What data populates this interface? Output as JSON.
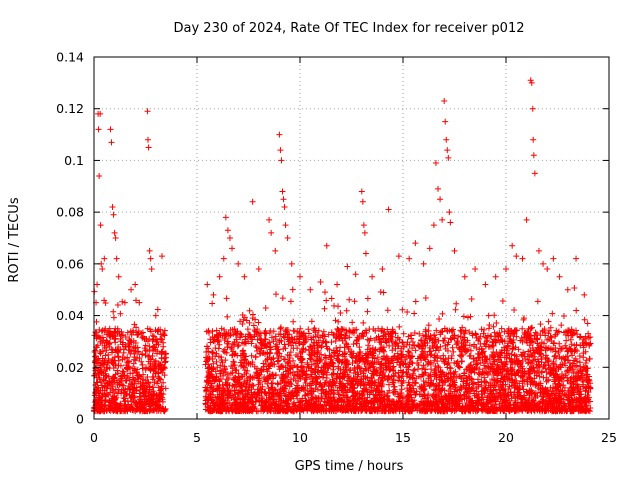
{
  "chart_data": {
    "type": "scatter",
    "title": "Day 230 of 2024, Rate Of TEC Index for receiver p012",
    "xlabel": "GPS time / hours",
    "ylabel": "ROTI / TECUs",
    "xlim": [
      0,
      25
    ],
    "ylim": [
      0,
      0.14
    ],
    "x_ticks": [
      "0",
      "5",
      "10",
      "15",
      "20",
      "25"
    ],
    "y_ticks": [
      "0",
      "0.02",
      "0.04",
      "0.06",
      "0.08",
      "0.1",
      "0.12",
      "0.14"
    ],
    "grid": true,
    "marker": "plus",
    "color": "#ff0000",
    "series": [
      {
        "points": [
          [
            0.1,
            0.045
          ],
          [
            0.15,
            0.052
          ],
          [
            0.2,
            0.118
          ],
          [
            0.22,
            0.112
          ],
          [
            0.25,
            0.094
          ],
          [
            0.3,
            0.118
          ],
          [
            0.32,
            0.075
          ],
          [
            0.35,
            0.06
          ],
          [
            0.4,
            0.058
          ],
          [
            0.5,
            0.062
          ],
          [
            0.8,
            0.112
          ],
          [
            0.85,
            0.107
          ],
          [
            0.9,
            0.082
          ],
          [
            0.95,
            0.079
          ],
          [
            1.0,
            0.072
          ],
          [
            1.05,
            0.07
          ],
          [
            1.1,
            0.062
          ],
          [
            1.2,
            0.055
          ],
          [
            1.5,
            0.045
          ],
          [
            1.8,
            0.05
          ],
          [
            2.0,
            0.052
          ],
          [
            2.2,
            0.045
          ],
          [
            2.6,
            0.119
          ],
          [
            2.62,
            0.108
          ],
          [
            2.65,
            0.105
          ],
          [
            2.7,
            0.065
          ],
          [
            2.75,
            0.062
          ],
          [
            2.8,
            0.058
          ],
          [
            3.0,
            0.04
          ],
          [
            3.3,
            0.063
          ],
          [
            5.5,
            0.052
          ],
          [
            5.8,
            0.048
          ],
          [
            6.1,
            0.055
          ],
          [
            6.3,
            0.062
          ],
          [
            6.4,
            0.078
          ],
          [
            6.5,
            0.073
          ],
          [
            6.6,
            0.07
          ],
          [
            6.7,
            0.066
          ],
          [
            7.0,
            0.06
          ],
          [
            7.3,
            0.055
          ],
          [
            7.7,
            0.084
          ],
          [
            8.0,
            0.058
          ],
          [
            8.5,
            0.077
          ],
          [
            8.6,
            0.072
          ],
          [
            8.8,
            0.065
          ],
          [
            9.0,
            0.11
          ],
          [
            9.05,
            0.104
          ],
          [
            9.1,
            0.1
          ],
          [
            9.15,
            0.088
          ],
          [
            9.2,
            0.085
          ],
          [
            9.25,
            0.082
          ],
          [
            9.3,
            0.075
          ],
          [
            9.4,
            0.07
          ],
          [
            9.6,
            0.06
          ],
          [
            10.0,
            0.055
          ],
          [
            10.5,
            0.05
          ],
          [
            11.0,
            0.053
          ],
          [
            11.3,
            0.067
          ],
          [
            11.8,
            0.052
          ],
          [
            12.3,
            0.059
          ],
          [
            12.7,
            0.056
          ],
          [
            13.0,
            0.088
          ],
          [
            13.05,
            0.084
          ],
          [
            13.1,
            0.075
          ],
          [
            13.15,
            0.072
          ],
          [
            13.2,
            0.064
          ],
          [
            13.5,
            0.055
          ],
          [
            14.0,
            0.058
          ],
          [
            14.3,
            0.081
          ],
          [
            14.8,
            0.063
          ],
          [
            15.3,
            0.062
          ],
          [
            15.6,
            0.068
          ],
          [
            16.0,
            0.06
          ],
          [
            16.3,
            0.066
          ],
          [
            16.5,
            0.075
          ],
          [
            16.6,
            0.099
          ],
          [
            16.7,
            0.089
          ],
          [
            16.8,
            0.085
          ],
          [
            16.9,
            0.077
          ],
          [
            17.0,
            0.123
          ],
          [
            17.05,
            0.115
          ],
          [
            17.1,
            0.108
          ],
          [
            17.15,
            0.104
          ],
          [
            17.2,
            0.101
          ],
          [
            17.25,
            0.08
          ],
          [
            17.3,
            0.076
          ],
          [
            17.5,
            0.065
          ],
          [
            18.0,
            0.055
          ],
          [
            18.5,
            0.058
          ],
          [
            19.0,
            0.052
          ],
          [
            19.5,
            0.055
          ],
          [
            20.0,
            0.058
          ],
          [
            20.3,
            0.067
          ],
          [
            20.5,
            0.063
          ],
          [
            20.8,
            0.062
          ],
          [
            21.0,
            0.077
          ],
          [
            21.2,
            0.131
          ],
          [
            21.25,
            0.13
          ],
          [
            21.3,
            0.12
          ],
          [
            21.32,
            0.108
          ],
          [
            21.35,
            0.102
          ],
          [
            21.4,
            0.095
          ],
          [
            21.6,
            0.065
          ],
          [
            21.8,
            0.06
          ],
          [
            22.0,
            0.058
          ],
          [
            22.3,
            0.062
          ],
          [
            22.6,
            0.055
          ],
          [
            23.0,
            0.05
          ],
          [
            23.4,
            0.062
          ],
          [
            23.8,
            0.048
          ]
        ]
      }
    ],
    "background_band": {
      "segments": [
        [
          0,
          3.5
        ],
        [
          5.4,
          24.1
        ]
      ],
      "y_floor": 0.003,
      "y_typical_top": 0.035,
      "count": 5200
    }
  }
}
